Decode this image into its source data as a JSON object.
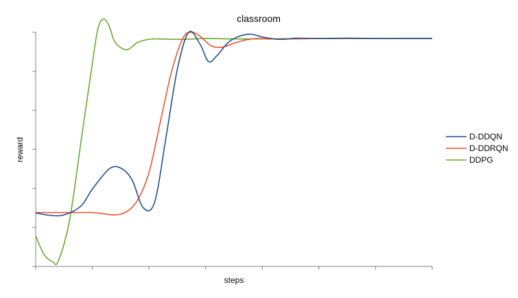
{
  "chart_data": {
    "type": "line",
    "title": "classroom",
    "xlabel": "steps",
    "ylabel": "reward",
    "xlim": [
      0,
      7
    ],
    "ylim": [
      0,
      6
    ],
    "x_ticks": 7,
    "y_ticks": 6,
    "grid": false,
    "legend": "right",
    "series": [
      {
        "name": "D-DDQN",
        "color": "#1f4e8c",
        "x": [
          0,
          0.25,
          0.5,
          0.8,
          1.0,
          1.3,
          1.5,
          1.7,
          1.9,
          2.1,
          2.3,
          2.5,
          2.7,
          2.9,
          3.05,
          3.2,
          3.4,
          3.6,
          3.8,
          4.0,
          4.2,
          4.4,
          4.6,
          5.0,
          5.5,
          6.0,
          6.5,
          7.0
        ],
        "y": [
          1.37,
          1.31,
          1.32,
          1.55,
          1.98,
          2.5,
          2.52,
          2.22,
          1.5,
          1.65,
          3.3,
          5.05,
          6.0,
          5.7,
          5.25,
          5.4,
          5.74,
          5.9,
          5.95,
          5.88,
          5.83,
          5.82,
          5.85,
          5.84,
          5.85,
          5.84,
          5.84,
          5.84
        ]
      },
      {
        "name": "D-DDRQN",
        "color": "#e8542a",
        "x": [
          0,
          0.5,
          0.8,
          1.0,
          1.2,
          1.4,
          1.6,
          1.8,
          2.0,
          2.2,
          2.4,
          2.6,
          2.75,
          2.9,
          3.1,
          3.3,
          3.5,
          3.7,
          3.9,
          4.1,
          4.5,
          5.0,
          5.5,
          6.0,
          6.5,
          7.0
        ],
        "y": [
          1.38,
          1.38,
          1.38,
          1.38,
          1.35,
          1.32,
          1.4,
          1.7,
          2.4,
          3.7,
          5.0,
          5.85,
          6.0,
          5.9,
          5.65,
          5.62,
          5.72,
          5.8,
          5.84,
          5.83,
          5.83,
          5.84,
          5.84,
          5.84,
          5.84,
          5.84
        ]
      },
      {
        "name": "DDPG",
        "color": "#6aaa2a",
        "x": [
          0,
          0.15,
          0.3,
          0.4,
          0.6,
          0.8,
          1.0,
          1.1,
          1.2,
          1.3,
          1.4,
          1.6,
          1.8,
          2.0,
          2.2,
          2.4,
          2.6,
          2.8,
          3.0,
          3.5,
          4.0,
          5.0,
          6.0,
          7.0
        ],
        "y": [
          0.78,
          0.3,
          0.12,
          0.14,
          1.2,
          3.2,
          5.2,
          6.1,
          6.34,
          6.15,
          5.75,
          5.55,
          5.74,
          5.82,
          5.83,
          5.82,
          5.82,
          5.83,
          5.84,
          5.83,
          5.83,
          5.84,
          5.84,
          5.84
        ]
      }
    ]
  }
}
